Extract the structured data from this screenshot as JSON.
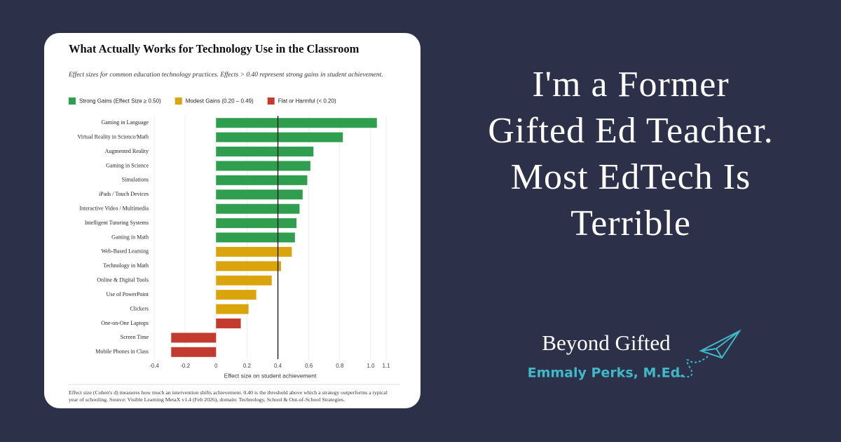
{
  "chart_data": {
    "type": "barh",
    "title": "What Actually Works for Technology Use in the Classroom",
    "subtitle": "Effect sizes for common education technology practices. Effects > 0.40 represent strong gains in student achievement.",
    "categories": [
      "Gaming in Language",
      "Virtual Reality in Science/Math",
      "Augmented Reality",
      "Gaming in Science",
      "Simulations",
      "iPads / Touch Devices",
      "Interactive Video / Multimedia",
      "Intelligent Tutoring Systems",
      "Gaming in Math",
      "Web-Based Learning",
      "Technology in Math",
      "Online & Digital Tools",
      "Use of PowerPoint",
      "Clickers",
      "One-on-One Laptops",
      "Screen Time",
      "Mobile Phones in Class"
    ],
    "series": [
      {
        "name": "Strong Gains (Effect Size ≥ 0.50)",
        "color": "#2f9e4f",
        "values": [
          1.04,
          0.82,
          0.63,
          0.61,
          0.59,
          0.56,
          0.54,
          0.52,
          0.51,
          null,
          null,
          null,
          null,
          null,
          null,
          null,
          null
        ]
      },
      {
        "name": "Modest Gains (0.20 – 0.49)",
        "color": "#d9a40c",
        "values": [
          null,
          null,
          null,
          null,
          null,
          null,
          null,
          null,
          null,
          0.49,
          0.42,
          0.36,
          0.26,
          0.21,
          null,
          null,
          null
        ]
      },
      {
        "name": "Flat or Harmful (< 0.20)",
        "color": "#c23b2e",
        "values": [
          null,
          null,
          null,
          null,
          null,
          null,
          null,
          null,
          null,
          null,
          null,
          null,
          null,
          null,
          0.16,
          -0.29,
          -0.29
        ]
      }
    ],
    "xlabel": "Effect size on student achievement",
    "xlim": [
      -0.4,
      1.1
    ],
    "xticks": [
      -0.4,
      -0.2,
      0,
      0.2,
      0.4,
      0.6,
      0.8,
      {
        "value": 1,
        "label": "1.0"
      },
      1.1
    ],
    "threshold_line": 0.4,
    "grid": true,
    "note": "Effect size (Cohen's d) measures how much an intervention shifts achievement. 0.40 is the threshold above which a strategy outperforms a typical year of schooling. Source: Visible Learning MetaX v1.4 (Feb 2026), domain: Technology, School & Out-of-School Strategies."
  },
  "headline": [
    "I'm a Former",
    "Gifted Ed Teacher.",
    "Most EdTech Is",
    "Terrible"
  ],
  "brand": {
    "name": "Beyond Gifted",
    "author": "Emmaly Perks, M.Ed."
  }
}
